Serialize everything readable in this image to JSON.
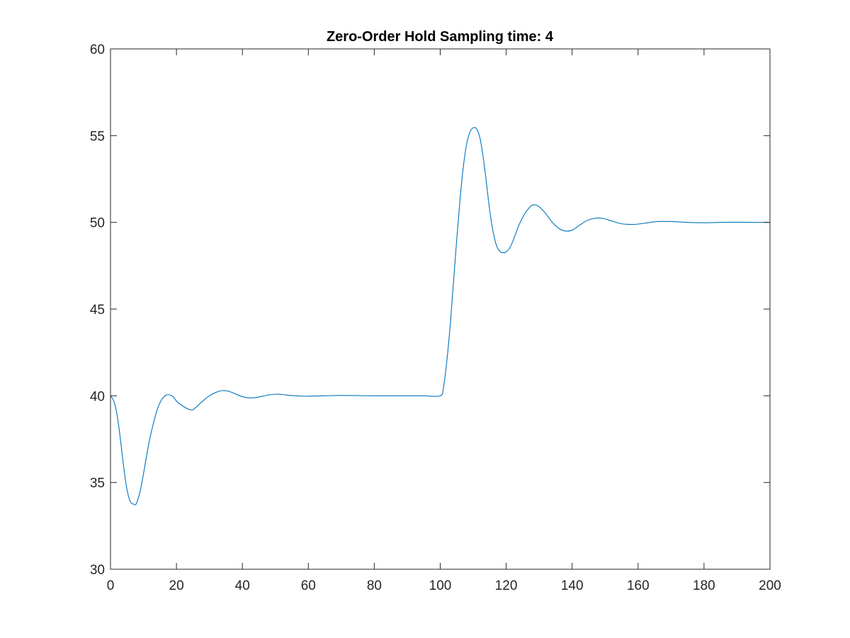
{
  "chart_data": {
    "type": "line",
    "title": "Zero-Order Hold Sampling time: 4",
    "xlabel": "",
    "ylabel": "",
    "xlim": [
      0,
      200
    ],
    "ylim": [
      30,
      60
    ],
    "xticks": [
      0,
      20,
      40,
      60,
      80,
      100,
      120,
      140,
      160,
      180,
      200
    ],
    "yticks": [
      30,
      35,
      40,
      45,
      50,
      55,
      60
    ],
    "grid": false,
    "legend": "none",
    "colors": {
      "line": "#0072BD",
      "axes": "#262626",
      "background": "#ffffff"
    },
    "series": [
      {
        "x": [
          0,
          1,
          2,
          3,
          4,
          5,
          6,
          7,
          7.5,
          8,
          9,
          10,
          11,
          12,
          13,
          14,
          15,
          16,
          17,
          18,
          19,
          20,
          22,
          24,
          25,
          26,
          28,
          30,
          32,
          34,
          36,
          38,
          40,
          42,
          44,
          46,
          48,
          50,
          52,
          54,
          56,
          58,
          60,
          65,
          70,
          75,
          80,
          85,
          90,
          95,
          100,
          101,
          102,
          103,
          104,
          105,
          106,
          107,
          108,
          109,
          110,
          111,
          112,
          113,
          114,
          115,
          116,
          117,
          118,
          119,
          120,
          121,
          122,
          123,
          124,
          126,
          128,
          130,
          132,
          134,
          136,
          138,
          140,
          142,
          144,
          146,
          148,
          150,
          152,
          155,
          158,
          160,
          163,
          166,
          170,
          175,
          180,
          185,
          190,
          195,
          200
        ],
        "y": [
          40.0,
          39.7,
          38.9,
          37.5,
          35.9,
          34.6,
          33.9,
          33.75,
          33.72,
          33.85,
          34.5,
          35.5,
          36.6,
          37.6,
          38.4,
          39.1,
          39.6,
          39.9,
          40.05,
          40.05,
          39.95,
          39.7,
          39.4,
          39.2,
          39.2,
          39.35,
          39.7,
          40.0,
          40.2,
          40.3,
          40.25,
          40.1,
          39.95,
          39.88,
          39.9,
          39.97,
          40.05,
          40.09,
          40.08,
          40.03,
          40.0,
          39.98,
          39.98,
          40.0,
          40.02,
          40.01,
          40.0,
          40.0,
          40.0,
          40.0,
          40.0,
          40.5,
          42.0,
          44.0,
          46.5,
          49.0,
          51.3,
          53.2,
          54.5,
          55.2,
          55.45,
          55.4,
          54.9,
          53.8,
          52.3,
          50.7,
          49.5,
          48.7,
          48.35,
          48.25,
          48.3,
          48.5,
          48.9,
          49.4,
          49.9,
          50.6,
          51.0,
          50.9,
          50.5,
          50.0,
          49.65,
          49.5,
          49.55,
          49.8,
          50.05,
          50.2,
          50.25,
          50.2,
          50.08,
          49.92,
          49.88,
          49.9,
          49.98,
          50.05,
          50.05,
          50.0,
          49.98,
          50.0,
          50.01,
          50.0,
          50.0
        ]
      }
    ]
  }
}
